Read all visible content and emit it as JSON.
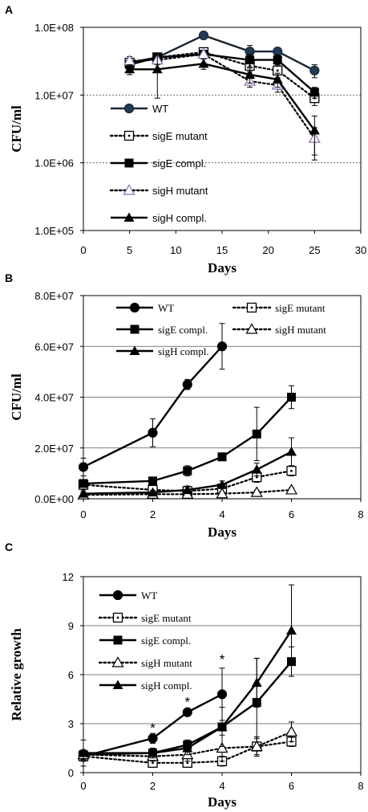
{
  "chart_data": [
    {
      "panel_label": "A",
      "type": "line",
      "xlabel": "Days",
      "ylabel": "CFU/ml",
      "log_y": true,
      "xlim": [
        0,
        30
      ],
      "ylim": [
        100000,
        100000000
      ],
      "x_ticks": [
        0,
        5,
        10,
        15,
        20,
        25,
        30
      ],
      "y_ticks": [
        100000,
        1000000,
        10000000,
        100000000
      ],
      "y_tick_labels": [
        "1.0E+05",
        "1.0E+06",
        "1.0E+07",
        "1.0E+08"
      ],
      "grid": "horizontal dashed",
      "legend": [
        "WT",
        "sigE mutant",
        "sigE compl.",
        "sigH mutant",
        "sigH compl."
      ],
      "legend_position": "lower-left inside",
      "series": [
        {
          "name": "WT",
          "style": "solid",
          "marker": "circle-filled",
          "color": "#1c2530",
          "marker_fill": "#1f3b57",
          "points": [
            {
              "x": 5,
              "y": 30000000,
              "err": 5000000
            },
            {
              "x": 8,
              "y": 36000000,
              "err": 5000000
            },
            {
              "x": 13,
              "y": 76000000,
              "err": 5000000
            },
            {
              "x": 18,
              "y": 44000000,
              "err": 10000000
            },
            {
              "x": 21,
              "y": 44000000,
              "err": 6000000
            },
            {
              "x": 25,
              "y": 23000000,
              "err": 5000000
            }
          ]
        },
        {
          "name": "sigE mutant",
          "style": "dotted",
          "marker": "square-open-dot",
          "color": "#000000",
          "points": [
            {
              "x": 5,
              "y": 30000000,
              "err": 4000000
            },
            {
              "x": 8,
              "y": 36000000,
              "err": 4000000
            },
            {
              "x": 13,
              "y": 43000000,
              "err": 5000000
            },
            {
              "x": 18,
              "y": 27000000,
              "err": 5000000
            },
            {
              "x": 21,
              "y": 23000000,
              "err": 5000000
            },
            {
              "x": 25,
              "y": 9000000,
              "err": 2000000
            }
          ]
        },
        {
          "name": "sigE compl.",
          "style": "solid",
          "marker": "square-filled",
          "color": "#000000",
          "points": [
            {
              "x": 5,
              "y": 28000000,
              "err": 4000000
            },
            {
              "x": 8,
              "y": 36000000,
              "err": 4000000
            },
            {
              "x": 13,
              "y": 40000000,
              "err": 6000000
            },
            {
              "x": 18,
              "y": 33000000,
              "err": 7000000
            },
            {
              "x": 21,
              "y": 33000000,
              "err": 6000000
            },
            {
              "x": 25,
              "y": 11000000,
              "err": 2000000
            }
          ]
        },
        {
          "name": "sigH mutant",
          "style": "dotted",
          "marker": "triangle-open",
          "color": "#000000",
          "marker_stroke": "#8a6fb0",
          "points": [
            {
              "x": 5,
              "y": 32000000,
              "err": 5000000
            },
            {
              "x": 8,
              "y": 33000000,
              "err": 5000000
            },
            {
              "x": 13,
              "y": 40000000,
              "err": 5000000
            },
            {
              "x": 18,
              "y": 16000000,
              "err": 3000000
            },
            {
              "x": 21,
              "y": 14000000,
              "err": 3000000
            },
            {
              "x": 25,
              "y": 2300000,
              "err": 1000000
            }
          ]
        },
        {
          "name": "sigH compl.",
          "style": "solid",
          "marker": "triangle-filled",
          "color": "#000000",
          "points": [
            {
              "x": 5,
              "y": 24000000,
              "err": 4000000
            },
            {
              "x": 8,
              "y": 24000000,
              "err": 15000000
            },
            {
              "x": 13,
              "y": 29000000,
              "err": 5000000
            },
            {
              "x": 18,
              "y": 20000000,
              "err": 5000000
            },
            {
              "x": 21,
              "y": 17000000,
              "err": 4000000
            },
            {
              "x": 25,
              "y": 3000000,
              "err": 1900000
            }
          ]
        }
      ]
    },
    {
      "panel_label": "B",
      "type": "line",
      "xlabel": "Days",
      "ylabel": "CFU/ml",
      "xlim": [
        0,
        8
      ],
      "ylim": [
        0,
        80000000
      ],
      "x_ticks": [
        0,
        2,
        4,
        6,
        8
      ],
      "y_ticks": [
        0,
        20000000,
        40000000,
        60000000,
        80000000
      ],
      "y_tick_labels": [
        "0.0E+00",
        "2.0E+07",
        "4.0E+07",
        "6.0E+07",
        "8.0E+07"
      ],
      "grid": "horizontal solid",
      "legend": [
        "WT",
        "sigE mutant",
        "sigE compl.",
        "sigH mutant",
        "sigH compl."
      ],
      "legend_position": "top inside, two columns",
      "series": [
        {
          "name": "WT",
          "style": "solid",
          "marker": "circle-filled",
          "color": "#000000",
          "points": [
            {
              "x": 0,
              "y": 12500000,
              "err": 3500000
            },
            {
              "x": 2,
              "y": 26000000,
              "err": 5500000
            },
            {
              "x": 3,
              "y": 45000000,
              "err": 2000000
            },
            {
              "x": 4,
              "y": 60000000,
              "err": 9000000
            }
          ]
        },
        {
          "name": "sigE mutant",
          "style": "dotted",
          "marker": "square-open-dot",
          "color": "#000000",
          "points": [
            {
              "x": 0,
              "y": 5500000,
              "err": 2000000
            },
            {
              "x": 2,
              "y": 3500000,
              "err": 1000000
            },
            {
              "x": 3,
              "y": 3000000,
              "err": 1000000
            },
            {
              "x": 4,
              "y": 4000000,
              "err": 1500000
            },
            {
              "x": 5,
              "y": 8500000,
              "err": 2000000
            },
            {
              "x": 6,
              "y": 11000000,
              "err": 2000000
            }
          ]
        },
        {
          "name": "sigE compl.",
          "style": "solid",
          "marker": "square-filled",
          "color": "#000000",
          "points": [
            {
              "x": 0,
              "y": 6000000,
              "err": 1500000
            },
            {
              "x": 2,
              "y": 7000000,
              "err": 1500000
            },
            {
              "x": 3,
              "y": 11000000,
              "err": 2000000
            },
            {
              "x": 4,
              "y": 16500000,
              "err": 1000000
            },
            {
              "x": 5,
              "y": 25500000,
              "err": 10500000
            },
            {
              "x": 6,
              "y": 40000000,
              "err": 4500000
            }
          ]
        },
        {
          "name": "sigH mutant",
          "style": "dotted",
          "marker": "triangle-open",
          "color": "#000000",
          "points": [
            {
              "x": 0,
              "y": 1500000,
              "err": 800000
            },
            {
              "x": 2,
              "y": 1800000,
              "err": 800000
            },
            {
              "x": 3,
              "y": 1800000,
              "err": 800000
            },
            {
              "x": 4,
              "y": 2000000,
              "err": 800000
            },
            {
              "x": 5,
              "y": 2500000,
              "err": 800000
            },
            {
              "x": 6,
              "y": 3500000,
              "err": 800000
            }
          ]
        },
        {
          "name": "sigH compl.",
          "style": "solid",
          "marker": "triangle-filled",
          "color": "#000000",
          "points": [
            {
              "x": 0,
              "y": 2000000,
              "err": 800000
            },
            {
              "x": 2,
              "y": 2500000,
              "err": 800000
            },
            {
              "x": 3,
              "y": 3500000,
              "err": 1500000
            },
            {
              "x": 4,
              "y": 5500000,
              "err": 1500000
            },
            {
              "x": 5,
              "y": 11500000,
              "err": 2500000
            },
            {
              "x": 6,
              "y": 18500000,
              "err": 5500000
            }
          ]
        }
      ]
    },
    {
      "panel_label": "C",
      "type": "line",
      "xlabel": "Days",
      "ylabel": "Relative growth",
      "xlim": [
        0,
        8
      ],
      "ylim": [
        0,
        12
      ],
      "x_ticks": [
        0,
        2,
        4,
        6,
        8
      ],
      "y_ticks": [
        0,
        3,
        6,
        9,
        12
      ],
      "y_tick_labels": [
        "0",
        "3",
        "6",
        "9",
        "12"
      ],
      "grid": "horizontal solid",
      "legend": [
        "WT",
        "sigE mutant",
        "sigE compl.",
        "sigH mutant",
        "sigH compl."
      ],
      "legend_position": "upper-left inside",
      "annotations": [
        {
          "text": "*",
          "x": 2,
          "y": 2.85
        },
        {
          "text": "*",
          "x": 3,
          "y": 4.45
        },
        {
          "text": "*",
          "x": 4,
          "y": 7.05
        }
      ],
      "series": [
        {
          "name": "WT",
          "style": "solid",
          "marker": "circle-filled",
          "color": "#000000",
          "points": [
            {
              "x": 0,
              "y": 1.0,
              "err": 0.3
            },
            {
              "x": 2,
              "y": 2.1,
              "err": 0.3
            },
            {
              "x": 3,
              "y": 3.7,
              "err": 0.2
            },
            {
              "x": 4,
              "y": 4.8,
              "err": 1.6
            }
          ]
        },
        {
          "name": "sigE mutant",
          "style": "dotted",
          "marker": "square-open-dot",
          "color": "#000000",
          "points": [
            {
              "x": 0,
              "y": 1.0,
              "err": 0.3
            },
            {
              "x": 2,
              "y": 0.6,
              "err": 0.2
            },
            {
              "x": 3,
              "y": 0.6,
              "err": 0.2
            },
            {
              "x": 4,
              "y": 0.7,
              "err": 0.3
            },
            {
              "x": 5,
              "y": 1.6,
              "err": 0.5
            },
            {
              "x": 6,
              "y": 1.9,
              "err": 0.3
            }
          ]
        },
        {
          "name": "sigE compl.",
          "style": "solid",
          "marker": "square-filled",
          "color": "#000000",
          "points": [
            {
              "x": 0,
              "y": 1.1,
              "err": 0.3
            },
            {
              "x": 2,
              "y": 1.2,
              "err": 0.3
            },
            {
              "x": 3,
              "y": 1.7,
              "err": 0.3
            },
            {
              "x": 4,
              "y": 2.8,
              "err": 0.2
            },
            {
              "x": 5,
              "y": 4.3,
              "err": 2.7
            },
            {
              "x": 6,
              "y": 6.8,
              "err": 0.9
            }
          ]
        },
        {
          "name": "sigH mutant",
          "style": "dotted",
          "marker": "triangle-open",
          "color": "#000000",
          "points": [
            {
              "x": 0,
              "y": 1.1,
              "err": 0.3
            },
            {
              "x": 2,
              "y": 1.0,
              "err": 0.3
            },
            {
              "x": 3,
              "y": 1.1,
              "err": 0.4
            },
            {
              "x": 4,
              "y": 1.5,
              "err": 0.8
            },
            {
              "x": 5,
              "y": 1.6,
              "err": 0.6
            },
            {
              "x": 6,
              "y": 2.5,
              "err": 0.6
            }
          ]
        },
        {
          "name": "sigH compl.",
          "style": "solid",
          "marker": "triangle-filled",
          "color": "#000000",
          "points": [
            {
              "x": 0,
              "y": 1.2,
              "err": 0.8
            },
            {
              "x": 2,
              "y": 1.2,
              "err": 0.3
            },
            {
              "x": 3,
              "y": 1.5,
              "err": 0.4
            },
            {
              "x": 4,
              "y": 2.8,
              "err": 1.2
            },
            {
              "x": 5,
              "y": 5.5,
              "err": 1.5
            },
            {
              "x": 6,
              "y": 8.7,
              "err": 2.8
            }
          ]
        }
      ]
    }
  ]
}
